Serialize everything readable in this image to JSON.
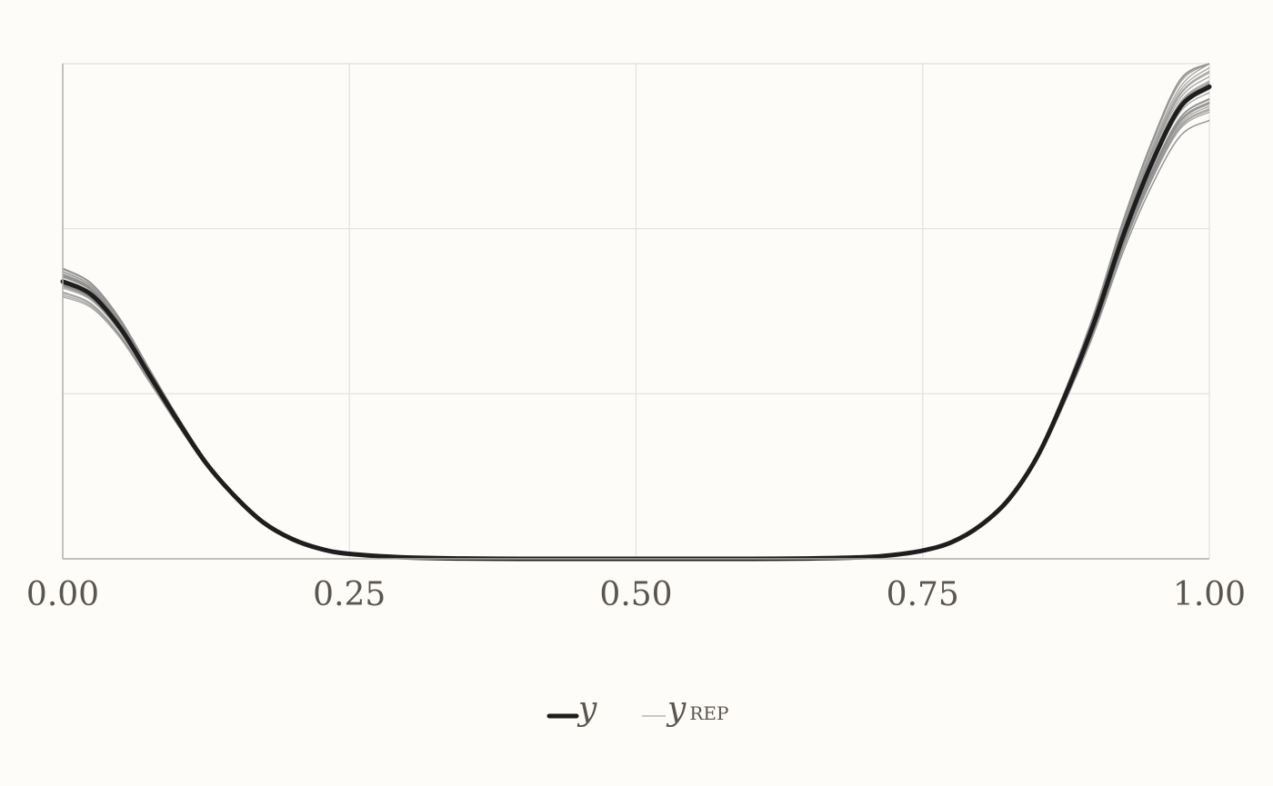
{
  "chart_data": {
    "type": "line",
    "title": "",
    "xlabel": "",
    "ylabel": "",
    "xlim": [
      0,
      1
    ],
    "ylim": [
      0,
      1.5
    ],
    "x_ticks": [
      0,
      0.25,
      0.5,
      0.75,
      1
    ],
    "x_tick_labels": [
      "0.00",
      "0.25",
      "0.50",
      "0.75",
      "1.00"
    ],
    "y_ticks": [
      0,
      0.5,
      1,
      1.5
    ],
    "y_tick_labels": [],
    "grid": true,
    "legend": {
      "placement": "bottom-center",
      "entries": [
        {
          "label": "y",
          "subscript": ""
        },
        {
          "label": "y",
          "subscript": "REP"
        }
      ]
    },
    "series": [
      {
        "role": "observed",
        "color": "#1e1e1e",
        "x": [
          0,
          0.025,
          0.05,
          0.075,
          0.1,
          0.125,
          0.15,
          0.175,
          0.2,
          0.225,
          0.25,
          0.3,
          0.35,
          0.4,
          0.45,
          0.5,
          0.55,
          0.6,
          0.65,
          0.7,
          0.725,
          0.75,
          0.775,
          0.8,
          0.825,
          0.85,
          0.875,
          0.9,
          0.925,
          0.95,
          0.975,
          1
        ],
        "y": [
          0.84,
          0.8,
          0.7,
          0.56,
          0.42,
          0.29,
          0.19,
          0.11,
          0.06,
          0.03,
          0.015,
          0.004,
          0.001,
          0.0,
          0.0,
          0.0,
          0.0,
          0.0,
          0.001,
          0.005,
          0.012,
          0.025,
          0.05,
          0.1,
          0.18,
          0.31,
          0.5,
          0.72,
          0.98,
          1.2,
          1.37,
          1.43
        ]
      }
    ],
    "replicates": {
      "count": 30,
      "color": "#8f8f8f",
      "spread_left": 0.05,
      "spread_right": 0.08
    }
  }
}
